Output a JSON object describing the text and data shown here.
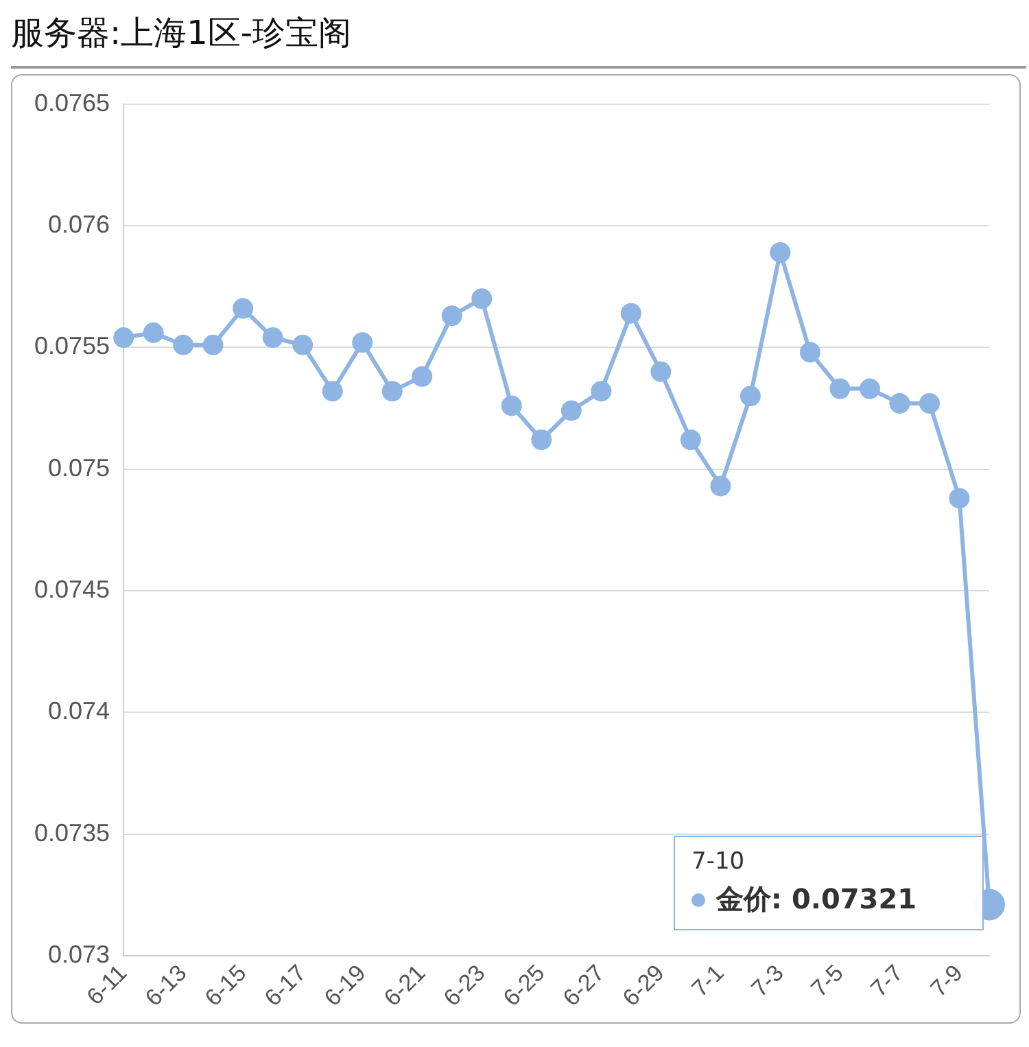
{
  "chart_data": {
    "type": "line",
    "title": "服务器:上海1区-珍宝阁",
    "categories": [
      "6-11",
      null,
      "6-13",
      null,
      "6-15",
      null,
      "6-17",
      null,
      "6-19",
      null,
      "6-21",
      null,
      "6-23",
      null,
      "6-25",
      null,
      "6-27",
      null,
      "6-29",
      null,
      "7-1",
      null,
      "7-3",
      null,
      "7-5",
      null,
      "7-7",
      null,
      "7-9",
      null
    ],
    "series": [
      {
        "color": "#8db4e2",
        "values": [
          0.07554,
          0.07556,
          0.07551,
          0.07551,
          0.07566,
          0.07554,
          0.07551,
          0.07532,
          0.07552,
          0.07532,
          0.07538,
          0.07563,
          0.0757,
          0.07526,
          0.07512,
          0.07524,
          0.07532,
          0.07564,
          0.0754,
          0.07512,
          0.07493,
          0.0753,
          0.07589,
          0.07548,
          0.07533,
          0.07533,
          0.07527,
          0.07527,
          0.07488,
          0.07321
        ]
      }
    ],
    "ylim": [
      0.073,
      0.0765
    ],
    "yticks": [
      0.073,
      0.0735,
      0.074,
      0.0745,
      0.075,
      0.0755,
      0.076,
      0.0765
    ],
    "grid": "y",
    "legend": false,
    "marker": "circle",
    "line_style": "solid",
    "annotations": [
      "7-10",
      "金价: 0.07321"
    ]
  }
}
